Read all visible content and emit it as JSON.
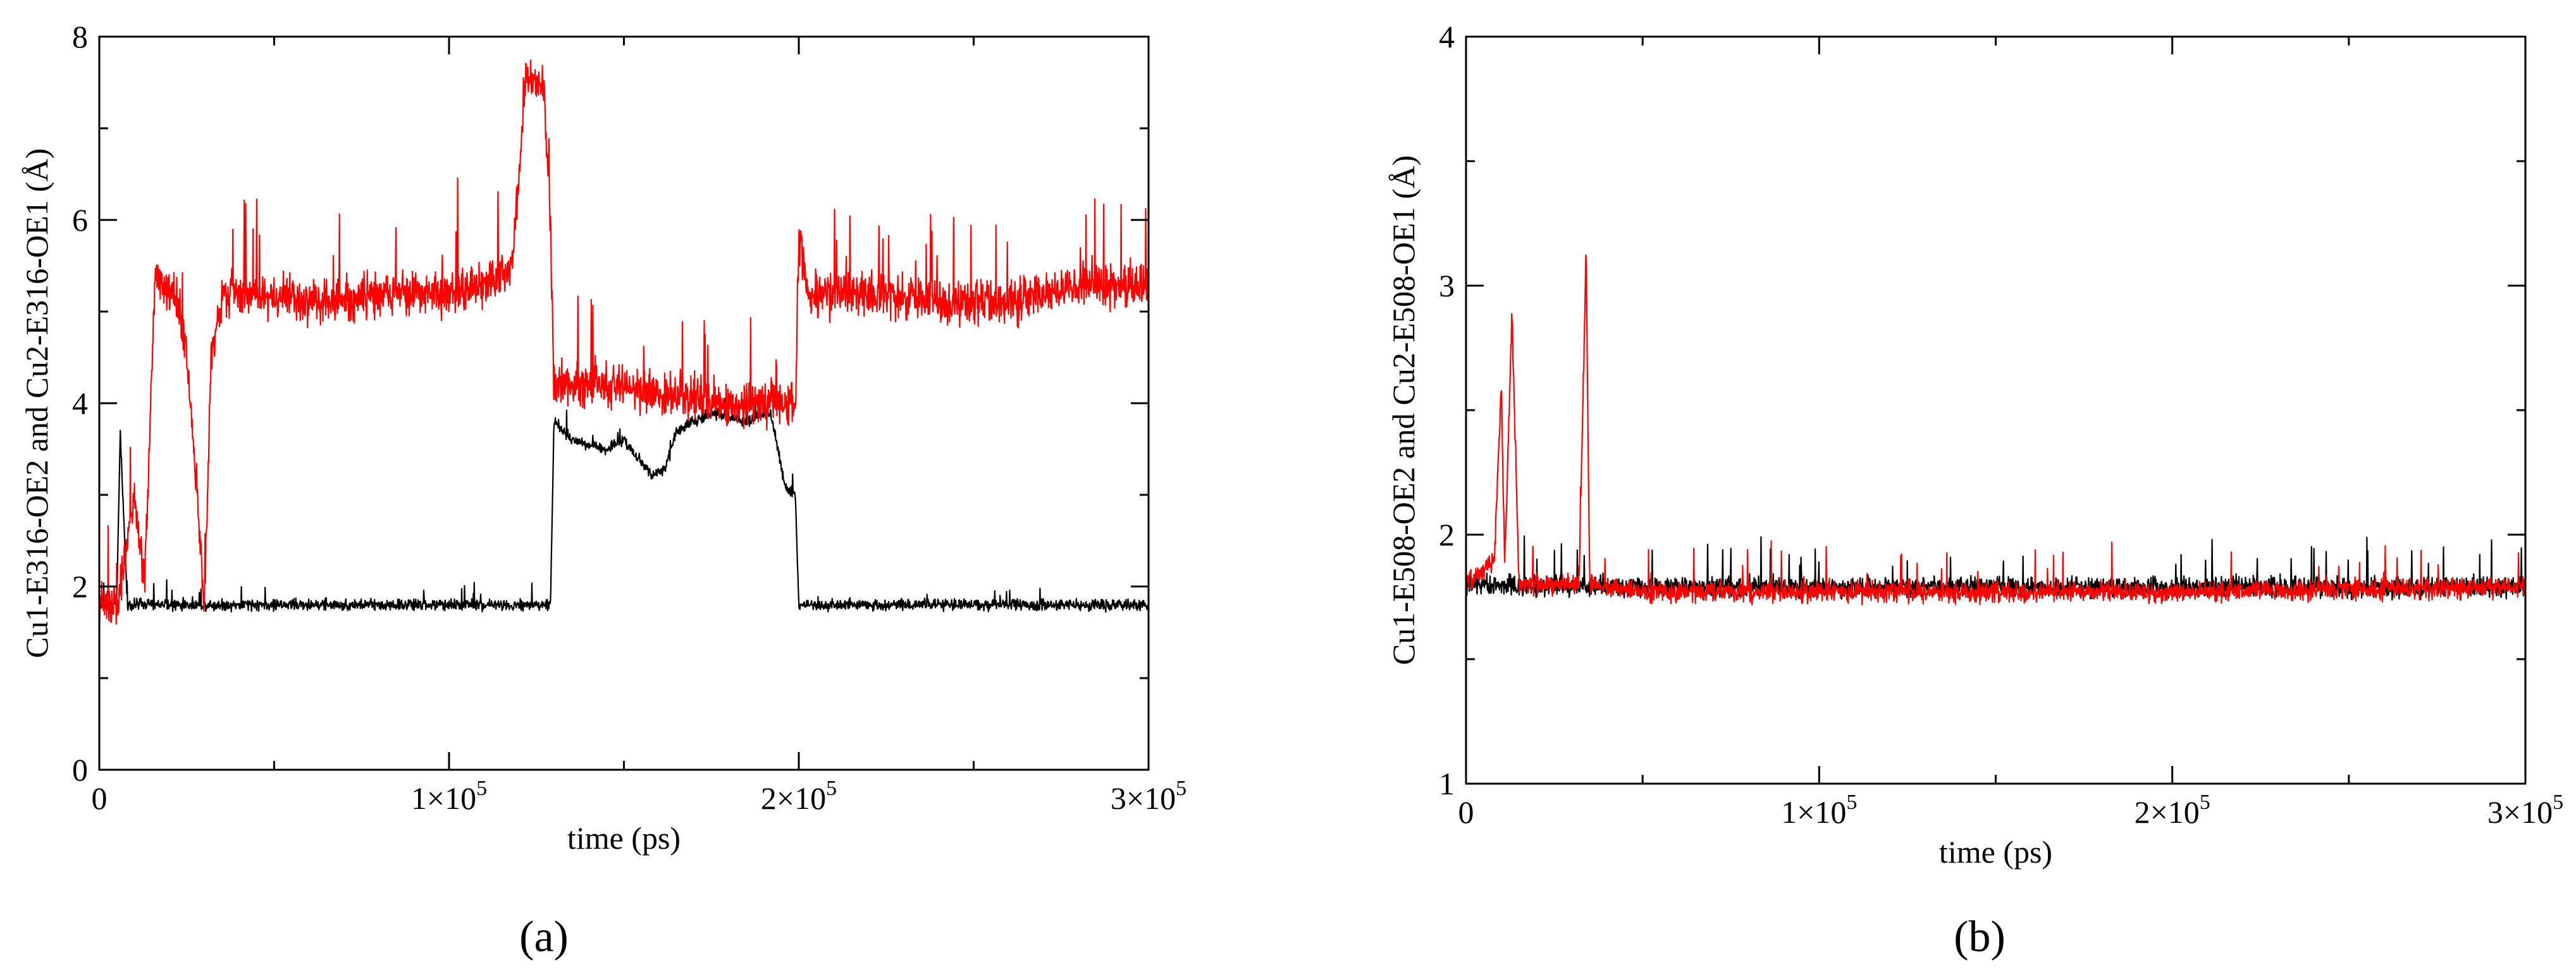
{
  "figure": {
    "captions": [
      "(a)",
      "(b)"
    ]
  },
  "chart_data": [
    {
      "type": "line",
      "panel": "a",
      "xlabel": "time (ps)",
      "ylabel": "Cu1-E316-OE2 and Cu2-E316-OE1 (Å)",
      "xlim": [
        0,
        300000
      ],
      "ylim": [
        0,
        8
      ],
      "xticks": [
        0,
        100000,
        200000,
        300000
      ],
      "xtick_labels": [
        "0",
        "1×10",
        "2×10",
        "3×10"
      ],
      "xtick_exponent": "5",
      "yticks": [
        0,
        2,
        4,
        6,
        8
      ],
      "ytick_labels": [
        "0",
        "2",
        "4",
        "6",
        "8"
      ],
      "grid": false,
      "legend": "none",
      "series": [
        {
          "color": "#000000",
          "x": [
            0,
            5000,
            6000,
            8000,
            10000,
            15000,
            20000,
            40000,
            60000,
            80000,
            100000,
            120000,
            129000,
            130000,
            135000,
            145000,
            150000,
            158000,
            162000,
            165000,
            175000,
            185000,
            192000,
            196000,
            199000,
            200000,
            210000,
            230000,
            250000,
            270000,
            300000
          ],
          "y": [
            1.8,
            1.8,
            3.7,
            1.8,
            1.8,
            1.8,
            1.8,
            1.8,
            1.8,
            1.8,
            1.8,
            1.8,
            1.8,
            3.8,
            3.6,
            3.5,
            3.6,
            3.2,
            3.3,
            3.7,
            3.9,
            3.8,
            3.9,
            3.1,
            3.0,
            1.8,
            1.8,
            1.8,
            1.8,
            1.8,
            1.8
          ],
          "noise": 0.09
        },
        {
          "color": "#ff0000",
          "x": [
            0,
            5000,
            8000,
            10000,
            13000,
            16000,
            18000,
            22000,
            25000,
            28000,
            30000,
            32000,
            35000,
            45000,
            60000,
            80000,
            100000,
            110000,
            118000,
            122000,
            127000,
            129000,
            130000,
            140000,
            160000,
            180000,
            195000,
            199000,
            200000,
            203000,
            220000,
            240000,
            260000,
            270000,
            280000,
            290000,
            300000
          ],
          "y": [
            1.8,
            1.8,
            2.5,
            3.0,
            2.0,
            5.5,
            5.3,
            5.2,
            4.5,
            3.0,
            1.8,
            4.5,
            5.2,
            5.2,
            5.1,
            5.2,
            5.2,
            5.3,
            5.5,
            7.6,
            7.5,
            6.0,
            4.2,
            4.2,
            4.1,
            4.0,
            4.0,
            4.0,
            5.8,
            5.2,
            5.2,
            5.1,
            5.1,
            5.2,
            5.3,
            5.3,
            5.3
          ],
          "noise": 0.35
        }
      ]
    },
    {
      "type": "line",
      "panel": "b",
      "xlabel": "time (ps)",
      "ylabel": "Cu1-E508-OE2 and Cu2-E508-OE1 (Å)",
      "xlim": [
        0,
        300000
      ],
      "ylim": [
        1,
        4
      ],
      "xticks": [
        0,
        100000,
        200000,
        300000
      ],
      "xtick_labels": [
        "0",
        "1×10",
        "2×10",
        "3×10"
      ],
      "xtick_exponent": "5",
      "yticks": [
        1,
        2,
        3,
        4
      ],
      "ytick_labels": [
        "1",
        "2",
        "3",
        "4"
      ],
      "grid": false,
      "legend": "none",
      "series": [
        {
          "color": "#000000",
          "x": [
            0,
            50000,
            100000,
            150000,
            200000,
            250000,
            300000
          ],
          "y": [
            1.8,
            1.79,
            1.79,
            1.79,
            1.79,
            1.79,
            1.79
          ],
          "noise": 0.06
        },
        {
          "color": "#ff0000",
          "x": [
            0,
            8000,
            10000,
            11000,
            13000,
            15000,
            32000,
            34000,
            35000,
            50000,
            100000,
            150000,
            200000,
            250000,
            300000
          ],
          "y": [
            1.8,
            1.9,
            2.6,
            1.85,
            2.9,
            1.8,
            1.8,
            3.15,
            1.8,
            1.77,
            1.77,
            1.77,
            1.77,
            1.78,
            1.79
          ],
          "noise": 0.06
        }
      ]
    }
  ]
}
